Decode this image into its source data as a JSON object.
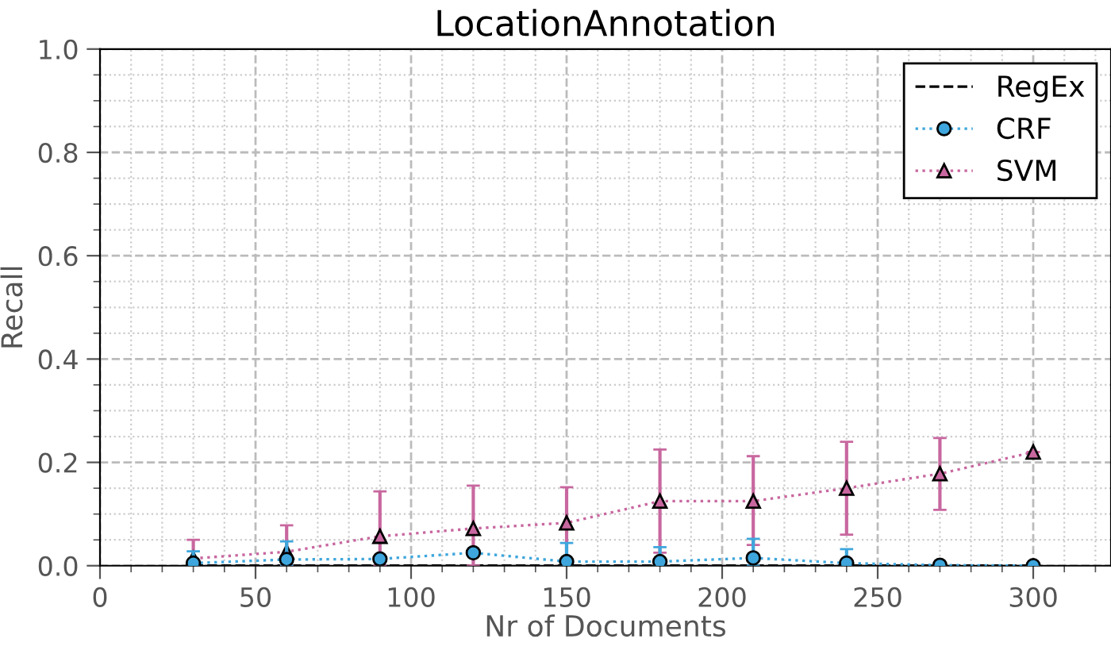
{
  "chart_data": {
    "type": "line",
    "title": "LocationAnnotation",
    "xlabel": "Nr of Documents",
    "ylabel": "Recall",
    "x": [
      30,
      60,
      90,
      120,
      150,
      180,
      210,
      240,
      270,
      300
    ],
    "series": [
      {
        "name": "RegEx",
        "color": "#000000",
        "line_style": "dashed",
        "marker": "none",
        "values": [
          0,
          0,
          0,
          0,
          0,
          0,
          0,
          0,
          0,
          0
        ]
      },
      {
        "name": "CRF",
        "color": "#3ea6dc",
        "line_style": "dotted",
        "marker": "circle",
        "values": [
          0.005,
          0.012,
          0.013,
          0.025,
          0.008,
          0.008,
          0.015,
          0.005,
          0.001,
          0.0
        ],
        "errors": [
          [
            0,
            0.028
          ],
          [
            0,
            0.047
          ],
          null,
          null,
          [
            0,
            0.044
          ],
          [
            0,
            0.036
          ],
          [
            0,
            0.052
          ],
          [
            0,
            0.032
          ],
          [
            0,
            0.004
          ],
          null
        ]
      },
      {
        "name": "SVM",
        "color": "#c8679f",
        "line_style": "dotted",
        "marker": "triangle",
        "values": [
          0.014,
          0.027,
          0.057,
          0.072,
          0.083,
          0.125,
          0.125,
          0.15,
          0.178,
          0.22
        ],
        "errors": [
          [
            0,
            0.05
          ],
          [
            0,
            0.078
          ],
          [
            0,
            0.144
          ],
          [
            0,
            0.155
          ],
          [
            0.01,
            0.152
          ],
          [
            0.025,
            0.225
          ],
          [
            0.04,
            0.212
          ],
          [
            0.06,
            0.24
          ],
          [
            0.108,
            0.247
          ],
          null
        ]
      }
    ],
    "xlim": [
      0,
      325
    ],
    "xticks": [
      0,
      50,
      100,
      150,
      200,
      250,
      300
    ],
    "ylim": [
      0,
      1.0
    ],
    "yticks": [
      {
        "value": 0,
        "label": "0.0"
      },
      {
        "value": 0.2,
        "label": "0.2"
      },
      {
        "value": 0.4,
        "label": "0.4"
      },
      {
        "value": 0.6,
        "label": "0.6"
      },
      {
        "value": 0.8,
        "label": "0.8"
      },
      {
        "value": 1.0,
        "label": "1.0"
      }
    ],
    "grid": true,
    "legend": "top right"
  }
}
